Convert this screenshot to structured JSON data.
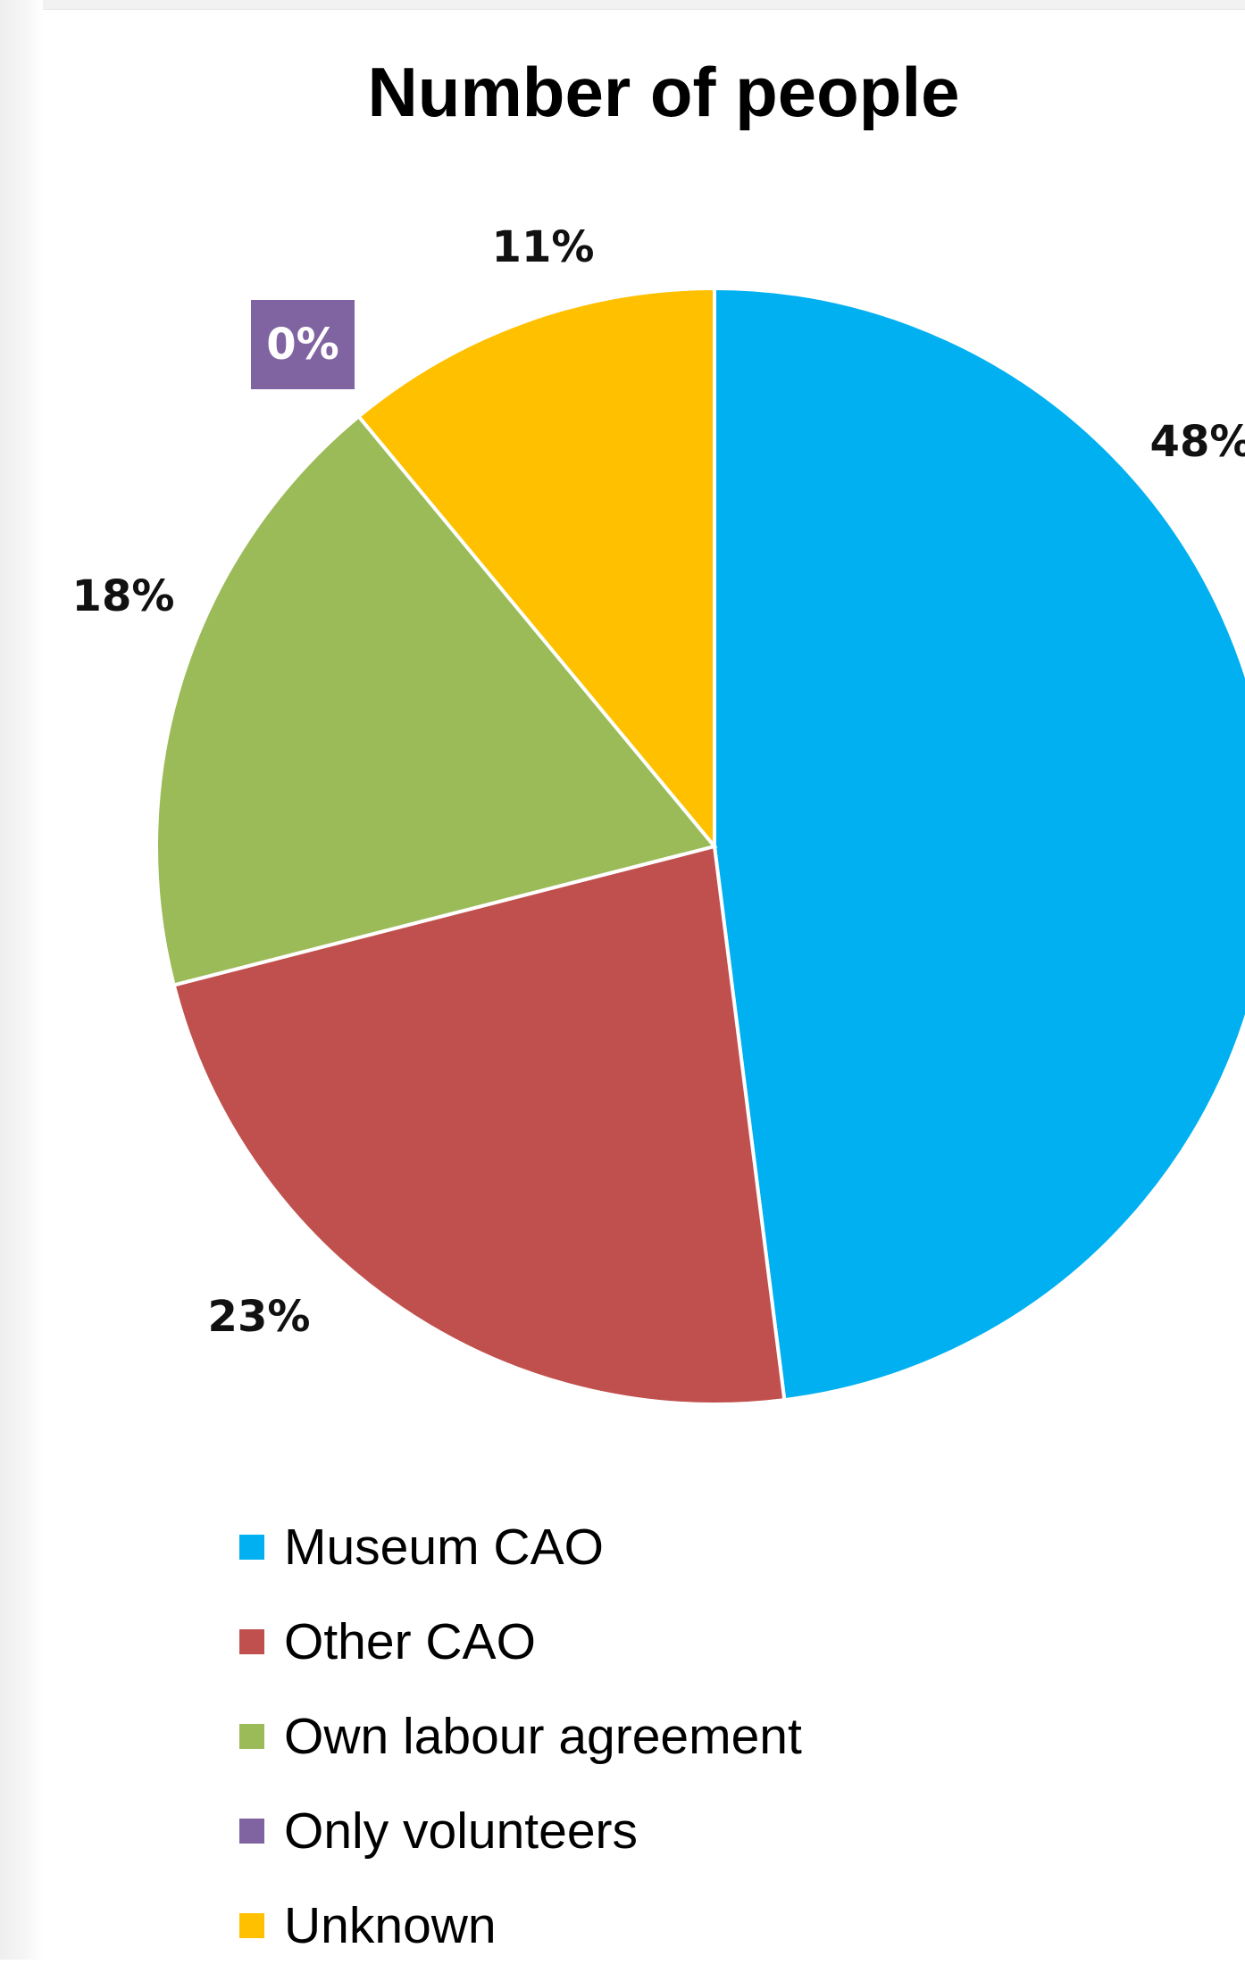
{
  "chart_data": {
    "type": "pie",
    "title": "Number of people",
    "slices": [
      {
        "label": "Museum CAO",
        "value": 48,
        "display": "48%",
        "color": "#00B0F0"
      },
      {
        "label": "Other CAO",
        "value": 23,
        "display": "23%",
        "color": "#C0504D"
      },
      {
        "label": "Own labour agreement",
        "value": 18,
        "display": "18%",
        "color": "#9BBB59"
      },
      {
        "label": "Only volunteers",
        "value": 0,
        "display": "0%",
        "color": "#8064A2"
      },
      {
        "label": "Unknown",
        "value": 11,
        "display": "11%",
        "color": "#FFC000"
      }
    ],
    "legend_position": "bottom"
  }
}
